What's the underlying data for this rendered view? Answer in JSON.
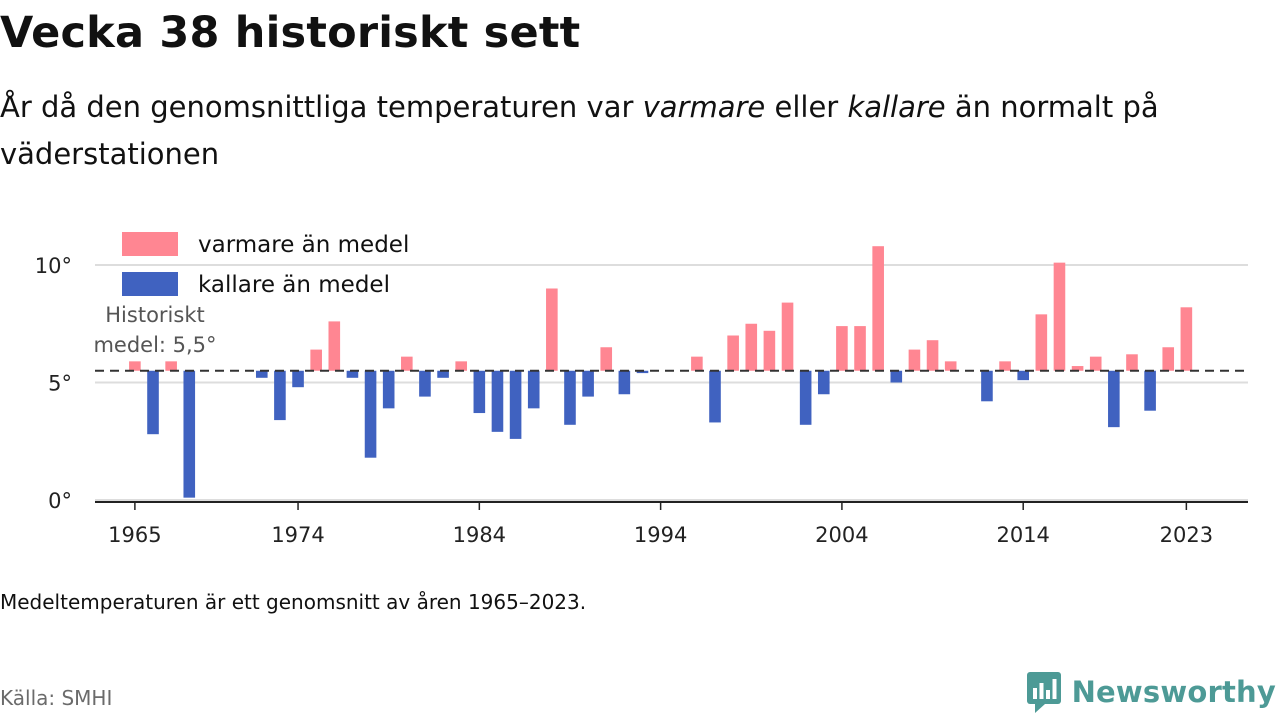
{
  "title": "Vecka 38 historiskt sett",
  "subtitle": {
    "part1": "År då den genomsnittliga temperaturen var ",
    "em1": "varmare",
    "part2": " eller ",
    "em2": "kallare",
    "part3": " än normalt på väderstationen"
  },
  "note": "Medeltemperaturen är ett genomsnitt av åren 1965–2023.",
  "source": "Källa: SMHI",
  "brand": {
    "name": "Newsworthy",
    "icon": "newsworthy-logo-icon"
  },
  "colors": {
    "warmer": "#ff8692",
    "colder": "#4062c0",
    "baseline": "#333333",
    "grid": "#dddddd",
    "brand": "#4d9a96"
  },
  "chart_data": {
    "type": "bar",
    "mean": 5.5,
    "mean_label": [
      "Historiskt",
      "medel: 5,5°"
    ],
    "y_ticks": [
      {
        "value": 0,
        "label": "0°"
      },
      {
        "value": 5,
        "label": "5°"
      },
      {
        "value": 10,
        "label": "10°"
      }
    ],
    "ylim": [
      0,
      11
    ],
    "x_ticks": [
      1965,
      1974,
      1984,
      1994,
      2004,
      2014,
      2023
    ],
    "xlim": [
      1962.8,
      2026.4
    ],
    "grid": true,
    "legend": {
      "placement": "top-left",
      "items": [
        {
          "key": "warmer",
          "label": "varmare än medel"
        },
        {
          "key": "colder",
          "label": "kallare än medel"
        }
      ]
    },
    "series": [
      {
        "x": [
          1965,
          1966,
          1967,
          1968,
          1969,
          1970,
          1971,
          1972,
          1973,
          1974,
          1975,
          1976,
          1977,
          1978,
          1979,
          1980,
          1981,
          1982,
          1983,
          1984,
          1985,
          1986,
          1987,
          1988,
          1989,
          1990,
          1991,
          1992,
          1993,
          1994,
          1995,
          1996,
          1997,
          1998,
          1999,
          2000,
          2001,
          2002,
          2003,
          2004,
          2005,
          2006,
          2007,
          2008,
          2009,
          2010,
          2011,
          2012,
          2013,
          2014,
          2015,
          2016,
          2017,
          2018,
          2019,
          2020,
          2021,
          2022,
          2023
        ],
        "values": [
          5.9,
          2.8,
          5.9,
          0.1,
          5.5,
          5.5,
          5.5,
          5.2,
          3.4,
          4.8,
          6.4,
          7.6,
          5.2,
          1.8,
          3.9,
          6.1,
          4.4,
          5.2,
          5.9,
          3.7,
          2.9,
          2.6,
          3.9,
          9.0,
          3.2,
          4.4,
          6.5,
          4.5,
          5.4,
          5.5,
          5.5,
          6.1,
          3.3,
          7.0,
          7.5,
          7.2,
          8.4,
          3.2,
          4.5,
          7.4,
          7.4,
          10.8,
          5.0,
          6.4,
          6.8,
          5.9,
          5.5,
          4.2,
          5.9,
          5.1,
          7.9,
          10.1,
          5.7,
          6.1,
          3.1,
          6.2,
          3.8,
          6.5,
          8.2
        ]
      }
    ]
  }
}
